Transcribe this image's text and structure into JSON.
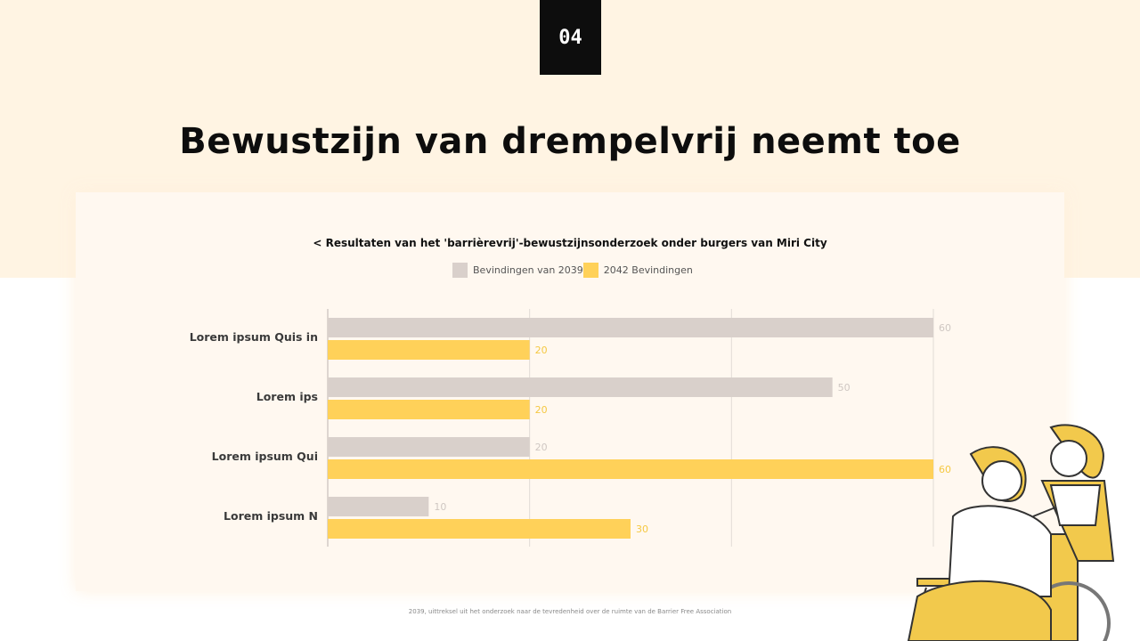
{
  "page_number": "04",
  "title": "Bewustzijn van drempelvrij neemt toe",
  "footnote": "2039, uittreksel uit het onderzoek naar de tevredenheid over de ruimte van de Barrier Free Association",
  "colors": {
    "background_band": "#fff4e3",
    "panel": "#fff8f0",
    "series_2039": "#d9d0cb",
    "series_2042": "#ffd159",
    "label_2039": "#cfc7c2",
    "label_2042": "#f5c842"
  },
  "chart_data": {
    "type": "bar",
    "orientation": "horizontal",
    "title": "< Resultaten van het 'barrièrevrij'-bewustzijnsonderzoek onder burgers van Miri City",
    "categories": [
      "Lorem ipsum Quis in",
      "Lorem ips",
      "Lorem ipsum Qui",
      "Lorem ipsum N"
    ],
    "series": [
      {
        "name": "Bevindingen van 2039",
        "values": [
          60,
          50,
          20,
          10
        ],
        "color": "#d9d0cb"
      },
      {
        "name": "2042 Bevindingen",
        "values": [
          20,
          20,
          60,
          30
        ],
        "color": "#ffd159"
      }
    ],
    "xlim": [
      0,
      60
    ],
    "gridlines": [
      0,
      20,
      40,
      60
    ],
    "grid": true,
    "legend_position": "top-center",
    "data_labels": true
  }
}
